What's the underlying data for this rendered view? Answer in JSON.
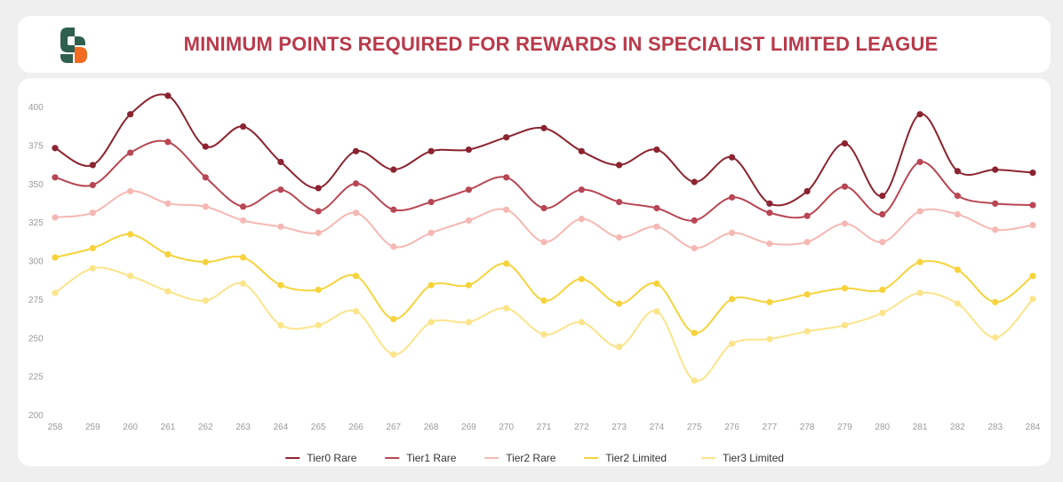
{
  "title": "MINIMUM POINTS REQUIRED FOR REWARDS IN SPECIALIST LIMITED LEAGUE",
  "logo": {
    "icon": "sorare-s-logo-icon",
    "colors": [
      "#2e5f4f",
      "#f26b21"
    ]
  },
  "chart_data": {
    "type": "line",
    "title": "MINIMUM POINTS REQUIRED FOR REWARDS IN SPECIALIST LIMITED LEAGUE",
    "xlabel": "",
    "ylabel": "",
    "x": [
      "258",
      "259",
      "260",
      "261",
      "262",
      "263",
      "264",
      "265",
      "266",
      "267",
      "268",
      "269",
      "270",
      "271",
      "272",
      "273",
      "274",
      "275",
      "276",
      "277",
      "278",
      "279",
      "280",
      "281",
      "282",
      "283",
      "284"
    ],
    "ylim": [
      200,
      410
    ],
    "yticks": [
      200,
      225,
      250,
      275,
      300,
      325,
      350,
      375,
      400
    ],
    "grid": false,
    "legend": "bottom-center",
    "series": [
      {
        "name": "Tier0 Rare",
        "color": "#8b2330",
        "values": [
          373,
          362,
          395,
          407,
          374,
          387,
          364,
          347,
          371,
          359,
          371,
          372,
          380,
          386,
          371,
          362,
          372,
          351,
          367,
          337,
          345,
          376,
          342,
          395,
          358,
          359,
          357
        ]
      },
      {
        "name": "Tier1 Rare",
        "color": "#b84654",
        "values": [
          354,
          349,
          370,
          377,
          354,
          335,
          346,
          332,
          350,
          333,
          338,
          346,
          354,
          334,
          346,
          338,
          334,
          326,
          341,
          331,
          329,
          348,
          330,
          364,
          342,
          337,
          336
        ]
      },
      {
        "name": "Tier2 Rare",
        "color": "#f5b8b4",
        "values": [
          328,
          331,
          345,
          337,
          335,
          326,
          322,
          318,
          331,
          309,
          318,
          326,
          333,
          312,
          327,
          315,
          322,
          308,
          318,
          311,
          312,
          324,
          312,
          332,
          330,
          320,
          323
        ]
      },
      {
        "name": "Tier2 Limited",
        "color": "#f6d33c",
        "values": [
          302,
          308,
          317,
          304,
          299,
          302,
          284,
          281,
          290,
          262,
          284,
          284,
          298,
          274,
          288,
          272,
          285,
          253,
          275,
          273,
          278,
          282,
          281,
          299,
          294,
          273,
          290
        ]
      },
      {
        "name": "Tier3 Limited",
        "color": "#fbe48a",
        "values": [
          279,
          295,
          290,
          280,
          274,
          285,
          258,
          258,
          267,
          239,
          260,
          260,
          269,
          252,
          260,
          244,
          267,
          222,
          246,
          249,
          254,
          258,
          266,
          279,
          272,
          250,
          275
        ]
      }
    ]
  }
}
